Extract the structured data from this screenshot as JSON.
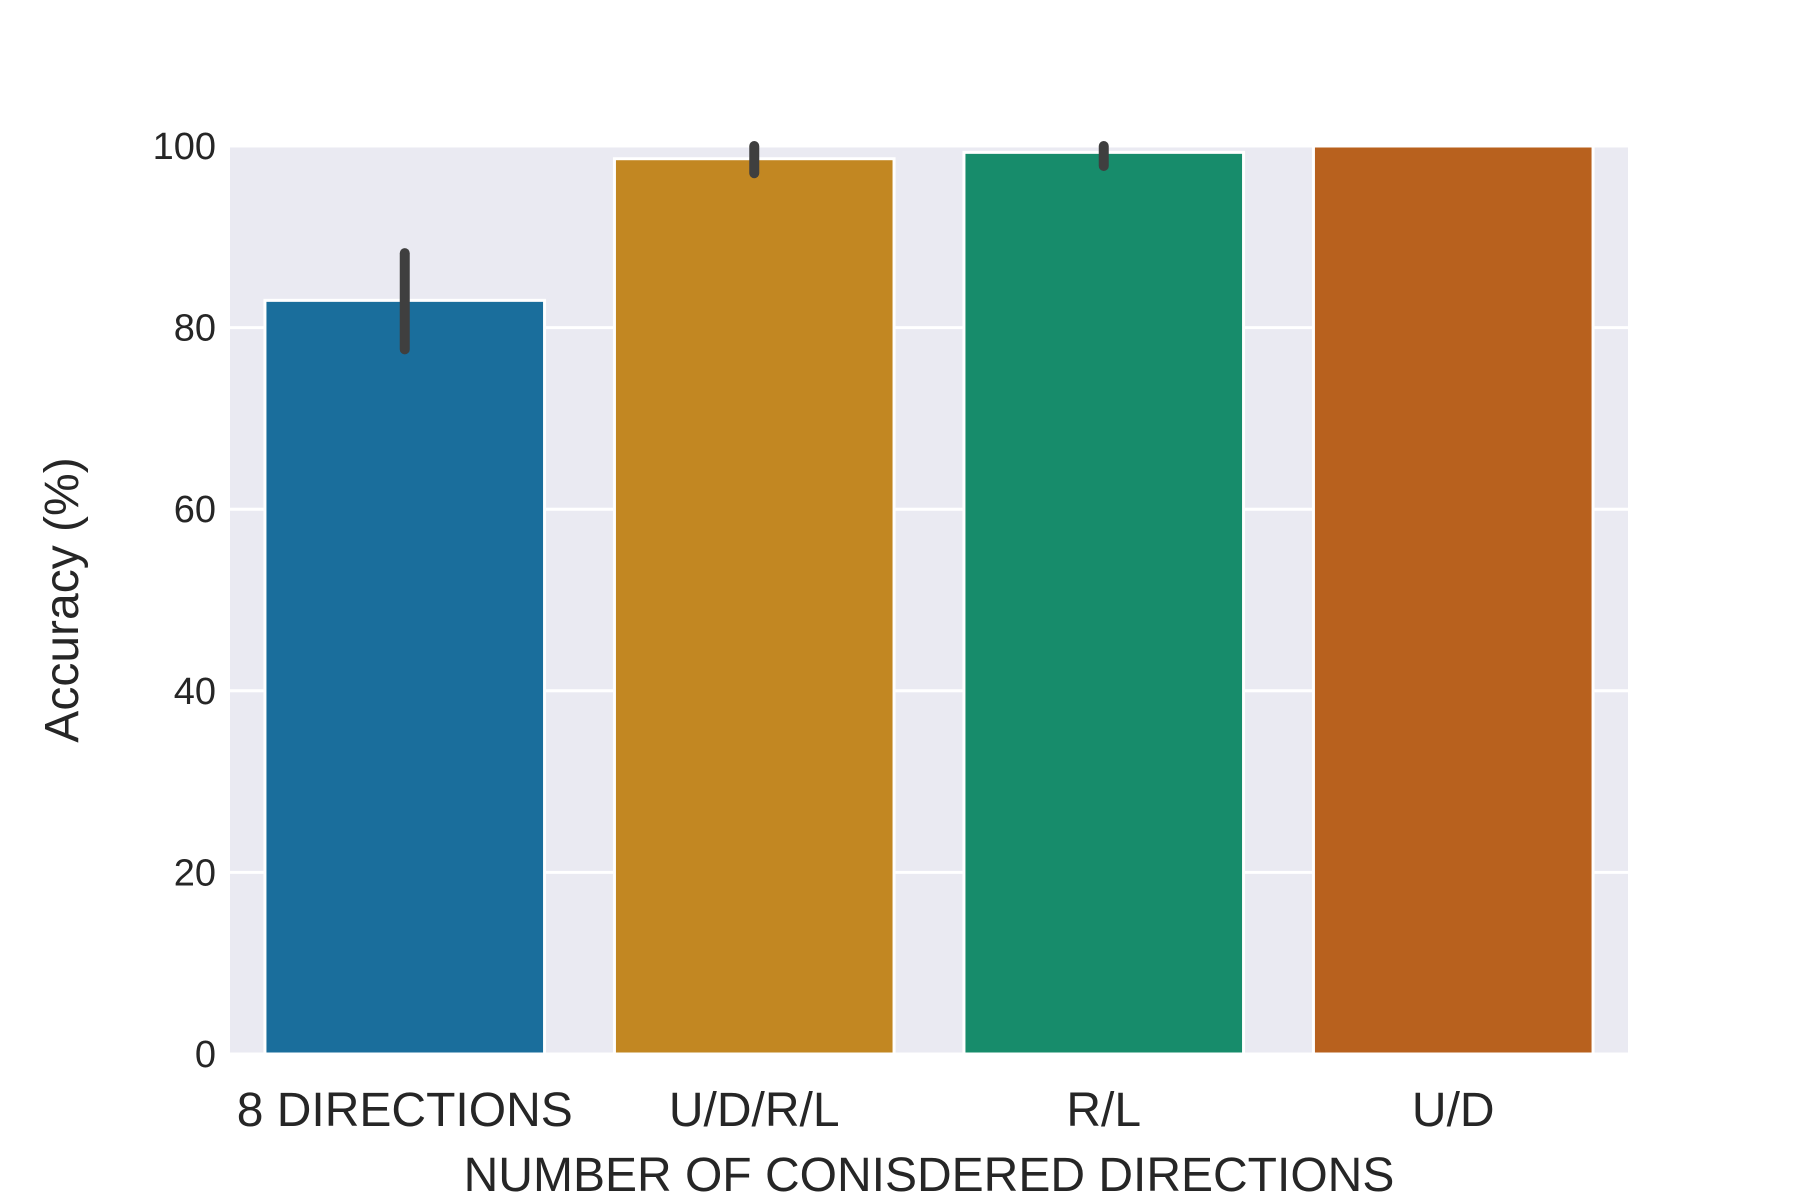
{
  "chart_data": {
    "type": "bar",
    "xlabel": "NUMBER OF CONISDERED DIRECTIONS",
    "ylabel": "Accuracy (%)",
    "ylim": [
      0,
      100
    ],
    "yticks": [
      "0",
      "20",
      "40",
      "60",
      "80",
      "100"
    ],
    "grid": true,
    "categories": [
      "8 DIRECTIONS",
      "U/D/R/L",
      "R/L",
      "U/D"
    ],
    "values": [
      83,
      98.6,
      99.3,
      100
    ],
    "error_bars": [
      [
        77.6,
        88.2
      ],
      [
        97.0,
        100
      ],
      [
        97.8,
        100
      ],
      null
    ],
    "colors": [
      "#1a6e9c",
      "#c28722",
      "#178c6b",
      "#b8611e"
    ],
    "background": "#eaeaf2",
    "gridline_color": "#ffffff",
    "errorbar_color": "#3f3f3f"
  }
}
